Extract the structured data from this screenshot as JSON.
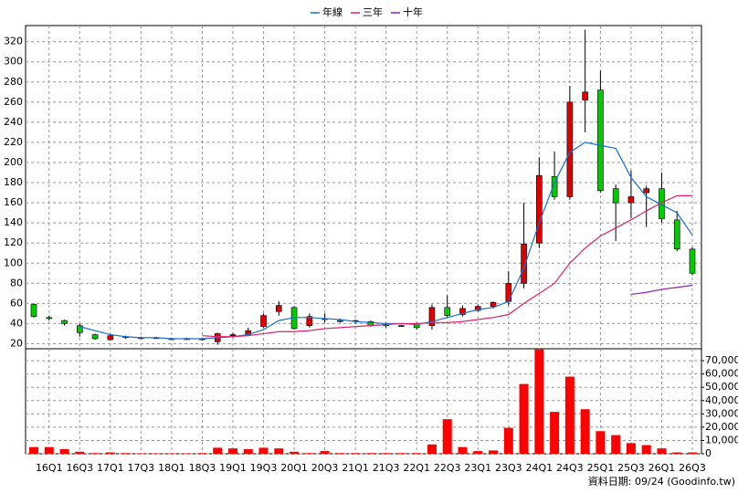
{
  "chart_data": {
    "type": "candlestick",
    "categories": [
      null,
      "16Q1",
      null,
      "16Q3",
      null,
      "17Q1",
      null,
      "17Q3",
      null,
      "18Q1",
      null,
      "18Q3",
      null,
      "19Q1",
      null,
      "19Q3",
      null,
      "20Q1",
      null,
      "20Q3",
      null,
      "21Q1",
      null,
      "21Q3",
      null,
      "22Q1",
      null,
      "22Q3",
      null,
      "23Q1",
      null,
      "23Q3",
      null,
      "24Q1",
      null,
      "24Q3",
      null,
      "25Q1",
      null,
      "25Q3",
      null,
      "26Q1",
      null,
      "26Q3"
    ],
    "open": [
      59,
      46,
      43,
      38,
      29,
      24,
      27,
      26,
      26,
      25,
      25,
      24,
      22,
      28,
      29,
      37,
      52,
      56,
      38,
      45,
      43,
      42,
      42,
      39,
      38,
      40,
      38,
      56,
      49,
      53,
      57,
      62,
      80,
      120,
      186,
      166,
      262,
      272,
      174,
      160,
      170,
      174,
      143,
      114
    ],
    "high": [
      60,
      48,
      44,
      40,
      30,
      30,
      28,
      27,
      27,
      26,
      26,
      26,
      31,
      31,
      36,
      50,
      62,
      57,
      50,
      50,
      45,
      44,
      43,
      41,
      39,
      41,
      59,
      68,
      58,
      59,
      62,
      92,
      160,
      205,
      211,
      276,
      332,
      291,
      178,
      192,
      177,
      190,
      152,
      116
    ],
    "low": [
      46,
      43,
      38,
      27,
      24,
      23,
      25,
      25,
      25,
      24,
      24,
      23,
      19,
      26,
      28,
      36,
      48,
      34,
      36,
      41,
      41,
      40,
      37,
      36,
      37,
      34,
      34,
      46,
      47,
      52,
      55,
      58,
      75,
      115,
      163,
      163,
      230,
      170,
      122,
      145,
      136,
      140,
      112,
      88
    ],
    "close": [
      47,
      45,
      40,
      31,
      25,
      28,
      26,
      26,
      26,
      25,
      25,
      25,
      30,
      29,
      33,
      48,
      58,
      35,
      47,
      44,
      42,
      43,
      38,
      38,
      38,
      36,
      56,
      48,
      55,
      57,
      61,
      80,
      119,
      187,
      166,
      260,
      270,
      172,
      160,
      166,
      174,
      144,
      114,
      90
    ],
    "up_color": "#dd0000",
    "down_color": "#00cc00",
    "ylim": [
      15,
      336
    ],
    "yticks": [
      20,
      40,
      60,
      80,
      100,
      120,
      140,
      160,
      180,
      200,
      220,
      240,
      260,
      280,
      300,
      320
    ],
    "series": [
      {
        "name": "年線",
        "color": "#1a6fd6",
        "values": [
          null,
          null,
          null,
          37,
          33,
          29,
          27,
          26,
          26,
          25,
          25,
          25,
          26,
          27,
          29,
          34,
          43,
          46,
          46,
          45,
          44,
          42,
          41,
          40,
          40,
          39,
          42,
          46,
          50,
          54,
          56,
          62,
          95,
          140,
          180,
          210,
          220,
          217,
          214,
          185,
          166,
          158,
          150,
          128
        ]
      },
      {
        "name": "三年",
        "color": "#e0206a",
        "values": [
          null,
          null,
          null,
          null,
          null,
          null,
          null,
          null,
          null,
          null,
          null,
          28,
          27,
          27,
          28,
          30,
          32,
          32,
          33,
          35,
          36,
          37,
          38,
          39,
          40,
          40,
          41,
          41,
          42,
          44,
          46,
          49,
          60,
          70,
          80,
          100,
          115,
          127,
          135,
          143,
          152,
          160,
          167,
          167
        ]
      },
      {
        "name": "十年",
        "color": "#9020c0",
        "values": [
          null,
          null,
          null,
          null,
          null,
          null,
          null,
          null,
          null,
          null,
          null,
          null,
          null,
          null,
          null,
          null,
          null,
          null,
          null,
          null,
          null,
          null,
          null,
          null,
          null,
          null,
          null,
          null,
          null,
          null,
          null,
          null,
          null,
          null,
          null,
          null,
          null,
          null,
          null,
          69,
          71,
          74,
          76,
          78
        ]
      }
    ],
    "volume": {
      "color": "#ff0000",
      "values": [
        5000,
        5000,
        3500,
        1500,
        500,
        1000,
        500,
        300,
        300,
        300,
        300,
        500,
        4500,
        4000,
        3500,
        4500,
        4000,
        1500,
        500,
        2000,
        500,
        500,
        500,
        500,
        500,
        500,
        7000,
        26000,
        5000,
        2000,
        2500,
        19500,
        52500,
        78500,
        31500,
        58000,
        33500,
        17000,
        14000,
        8000,
        6500,
        4000,
        1000,
        1000
      ],
      "ylim": [
        0,
        79000
      ],
      "yticks": [
        0,
        {
          "value": 10000,
          "label": "10,000"
        },
        {
          "value": 20000,
          "label": "20,000"
        },
        {
          "value": 30000,
          "label": "30,000"
        },
        {
          "value": 40000,
          "label": "40,000"
        },
        {
          "value": 50000,
          "label": "50,000"
        },
        {
          "value": 60000,
          "label": "60,000"
        },
        {
          "value": 70000,
          "label": "70,000"
        }
      ]
    },
    "grid": true,
    "source": "資料日期: 09/24 (Goodinfo.tw)"
  }
}
